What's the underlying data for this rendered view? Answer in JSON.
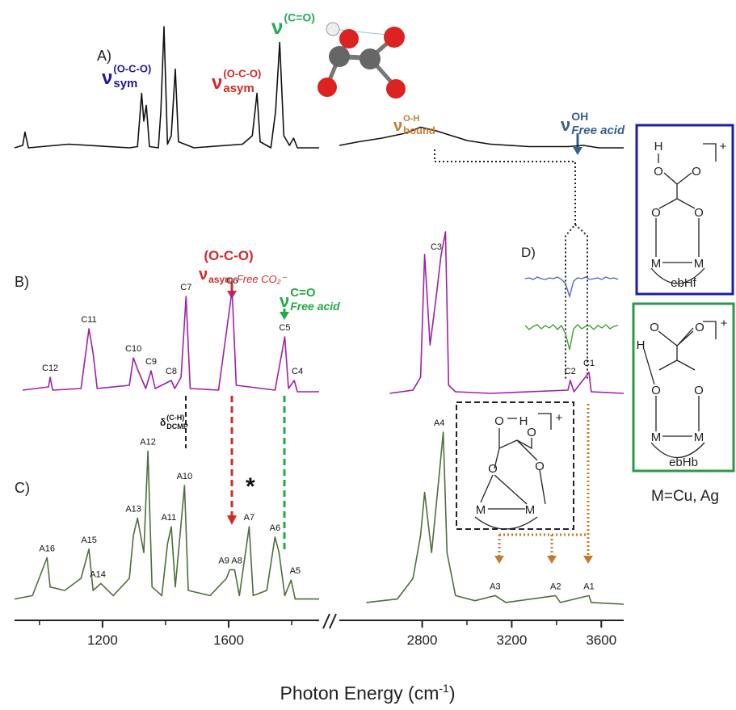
{
  "chart_data": {
    "type": "line",
    "x_label": {
      "text": "Photon Energy (cm",
      "sup": "-1",
      "tail": ")"
    },
    "x_segments": [
      {
        "xlim": [
          921,
          1887
        ],
        "xticks": [
          1200,
          1600
        ],
        "minor_xticks": [
          1000,
          1400,
          1800
        ]
      },
      {
        "xlim": [
          2430,
          3700
        ],
        "xticks": [
          2800,
          3200,
          3600
        ],
        "minor_xticks": [
          3000,
          3400
        ]
      }
    ],
    "series": [
      {
        "name": "A)",
        "color": "#111111",
        "x": [
          921,
          947,
          954,
          965,
          1093,
          1285,
          1311,
          1324,
          1331,
          1339,
          1349,
          1377,
          1385,
          1395,
          1406,
          1418,
          1431,
          1441,
          1490,
          1644,
          1675,
          1690,
          1700,
          1734,
          1749,
          1762,
          1775,
          1793,
          1806,
          1818,
          1887,
          null,
          2430,
          2517,
          2620,
          2724,
          2793,
          2863,
          2932,
          3001,
          3105,
          3278,
          3451,
          3520,
          3589,
          3700
        ],
        "values": [
          0,
          2,
          13,
          0,
          3,
          0,
          1,
          45,
          22,
          35,
          1,
          0,
          30,
          100,
          3,
          10,
          65,
          5,
          0,
          3,
          10,
          45,
          5,
          0,
          30,
          87,
          10,
          2,
          8,
          0,
          0,
          null,
          2,
          5,
          8,
          12,
          17,
          14,
          10,
          6,
          3,
          1,
          1,
          2,
          0,
          0
        ],
        "peaks": []
      },
      {
        "name": "B)",
        "color": "#a020a8",
        "x": [
          947,
          1029,
          1034,
          1042,
          1132,
          1157,
          1170,
          1183,
          1285,
          1298,
          1311,
          1337,
          1354,
          1367,
          1418,
          1429,
          1449,
          1465,
          1478,
          1568,
          1611,
          1624,
          1747,
          1778,
          1790,
          1808,
          1818,
          1887,
          null,
          2655,
          2759,
          2793,
          2811,
          2835,
          2863,
          2884,
          2904,
          2918,
          2949,
          3105,
          3451,
          3461,
          3478,
          3545,
          3555,
          3700
        ],
        "values": [
          2,
          4,
          10,
          2,
          3,
          40,
          25,
          3,
          5,
          22,
          15,
          3,
          14,
          3,
          8,
          3,
          10,
          60,
          3,
          2,
          64,
          5,
          2,
          35,
          3,
          8,
          1,
          1,
          null,
          0,
          2,
          10,
          86,
          30,
          60,
          85,
          100,
          5,
          1,
          0,
          2,
          8,
          1,
          13,
          1,
          0
        ],
        "peaks": [
          {
            "text": "C12",
            "x": 1034
          },
          {
            "text": "C11",
            "x": 1157
          },
          {
            "text": "C10",
            "x": 1298
          },
          {
            "text": "C9",
            "x": 1354
          },
          {
            "text": "C8",
            "x": 1418
          },
          {
            "text": "C7",
            "x": 1465
          },
          {
            "text": "C6",
            "x": 1611
          },
          {
            "text": "C5",
            "x": 1778
          },
          {
            "text": "C4",
            "x": 1818
          },
          {
            "text": "C3",
            "x": 2863
          },
          {
            "text": "C2",
            "x": 3461
          },
          {
            "text": "C1",
            "x": 3545
          }
        ]
      },
      {
        "name": "C)",
        "color": "#4e6e3e",
        "x": [
          921,
          978,
          1024,
          1034,
          1080,
          1132,
          1157,
          1170,
          1195,
          1234,
          1285,
          1298,
          1311,
          1331,
          1344,
          1357,
          1388,
          1406,
          1418,
          1431,
          1460,
          1472,
          1541,
          1593,
          1603,
          1619,
          1634,
          1665,
          1678,
          1721,
          1747,
          1760,
          1778,
          1798,
          1811,
          1887,
          null,
          2551,
          2689,
          2759,
          2793,
          2811,
          2842,
          2876,
          2894,
          2911,
          2949,
          3036,
          3126,
          3174,
          3396,
          3417,
          3545,
          3555,
          3700
        ],
        "values": [
          3,
          5,
          27,
          10,
          8,
          15,
          32,
          8,
          12,
          5,
          15,
          40,
          50,
          30,
          89,
          10,
          5,
          35,
          45,
          10,
          69,
          8,
          5,
          15,
          20,
          20,
          5,
          45,
          5,
          8,
          39,
          30,
          5,
          14,
          3,
          3,
          null,
          1,
          3,
          15,
          40,
          65,
          30,
          75,
          100,
          30,
          5,
          2,
          5,
          1,
          5,
          1,
          5,
          1,
          0
        ],
        "peaks": [
          {
            "text": "A16",
            "x": 1024
          },
          {
            "text": "A15",
            "x": 1157
          },
          {
            "text": "A14",
            "x": 1185
          },
          {
            "text": "A13",
            "x": 1298
          },
          {
            "text": "A12",
            "x": 1344
          },
          {
            "text": "A11",
            "x": 1410
          },
          {
            "text": "A10",
            "x": 1460
          },
          {
            "text": "A9",
            "x": 1585
          },
          {
            "text": "A8",
            "x": 1626
          },
          {
            "text": "A7",
            "x": 1665
          },
          {
            "text": "A6",
            "x": 1747
          },
          {
            "text": "A5",
            "x": 1811
          },
          {
            "text": "A4",
            "x": 2876
          },
          {
            "text": "A3",
            "x": 3126
          },
          {
            "text": "A2",
            "x": 3396
          },
          {
            "text": "A1",
            "x": 3545
          }
        ]
      }
    ],
    "inset": {
      "name": "D)",
      "series": [
        {
          "color": "#4a5fc8",
          "values": [
            0,
            1,
            -1,
            2,
            0,
            -1,
            1,
            0,
            2,
            -1,
            -6,
            -22,
            -3,
            1,
            0,
            2,
            -1,
            0,
            1,
            -1,
            2,
            0,
            1,
            -1
          ]
        },
        {
          "color": "#3a9a2a",
          "values": [
            2,
            -3,
            1,
            3,
            -2,
            2,
            -1,
            3,
            -3,
            2,
            -8,
            -28,
            -2,
            3,
            -2,
            1,
            2,
            -3,
            2,
            -1,
            3,
            -2,
            1,
            2
          ]
        }
      ]
    },
    "annotations": [
      {
        "main": "ν",
        "sup": "(O-C-O)",
        "sub": "sym",
        "color": "#1c1c9c"
      },
      {
        "main": "ν",
        "sup": "(O-C-O)",
        "sub": "asym",
        "color": "#d42a2a"
      },
      {
        "main": "ν",
        "sup": "(C=O)",
        "color": "#22aa55"
      },
      {
        "main": "ν",
        "sup": "O-H",
        "sub": "bound",
        "color": "#cc7a2a"
      },
      {
        "main": "ν",
        "sup": "OH",
        "sub": "Free acid",
        "color": "#3a5f8f"
      },
      {
        "top": "(O-C-O)",
        "main": "ν",
        "sub": "asym",
        "note": "Free CO₂⁻",
        "color": "#d42a2a"
      },
      {
        "main": "ν",
        "sup": "C=O",
        "sub": "Free acid",
        "color": "#22aa44"
      },
      {
        "main": "δ",
        "sup": "(C-H)",
        "sub": "DCMP",
        "color": "#111111"
      },
      {
        "main": "*",
        "color": "#111111"
      }
    ]
  },
  "structures": [
    {
      "name": "ebHf",
      "atoms": [
        "H",
        "O",
        "O",
        "O",
        "O",
        "M",
        "M"
      ],
      "charge": "+"
    },
    {
      "name": "ebHb",
      "atoms": [
        "O",
        "O",
        "H",
        "O",
        "O",
        "M",
        "M"
      ],
      "charge": "+"
    },
    {
      "atoms": [
        "O",
        "H",
        "O",
        "O",
        "O",
        "M",
        "M"
      ],
      "charge": "+"
    }
  ],
  "metal_note": "M=Cu, Ag"
}
